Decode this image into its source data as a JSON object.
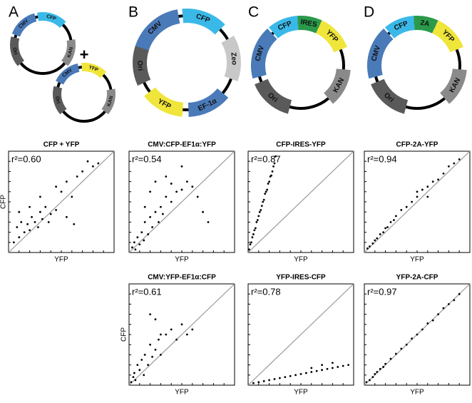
{
  "panels": [
    "A",
    "B",
    "C",
    "D"
  ],
  "plus": "+",
  "plasmids": [
    {
      "features": [
        "CMV",
        "CFP",
        "KAN",
        "Ori"
      ]
    },
    {
      "features": [
        "CMV",
        "YFP",
        "KAN",
        "Ori"
      ]
    },
    {
      "features": [
        "CMV",
        "CFP",
        "Zeo",
        "EF-1α",
        "YFP",
        "Ori"
      ]
    },
    {
      "features": [
        "CMV",
        "CFP",
        "IRES",
        "YFP",
        "KAN",
        "Ori"
      ]
    },
    {
      "features": [
        "CMV",
        "CFP",
        "2A",
        "YFP",
        "KAN",
        "Ori"
      ]
    }
  ],
  "chart_data": [
    {
      "type": "scatter",
      "title": "CFP + YFP",
      "annotation": "r²=0.60",
      "x_label": "YFP",
      "y_label": "CFP",
      "color": "#000000",
      "xlim": [
        0,
        100
      ],
      "ylim": [
        0,
        100
      ],
      "x": [
        5,
        8,
        10,
        12,
        15,
        18,
        20,
        22,
        25,
        28,
        30,
        32,
        35,
        38,
        40,
        45,
        50,
        55,
        60,
        65,
        70,
        75,
        80,
        85,
        45,
        30,
        20,
        55,
        62,
        10
      ],
      "y": [
        10,
        25,
        15,
        30,
        20,
        28,
        22,
        35,
        30,
        25,
        40,
        33,
        45,
        30,
        38,
        42,
        60,
        70,
        55,
        75,
        80,
        90,
        85,
        88,
        65,
        55,
        45,
        35,
        28,
        40
      ]
    },
    {
      "type": "scatter",
      "title": "CMV:CFP-EF1α:YFP",
      "annotation": "r²=0.54",
      "x_label": "YFP",
      "color": "#000000",
      "xlim": [
        0,
        100
      ],
      "ylim": [
        0,
        100
      ],
      "x": [
        3,
        5,
        6,
        8,
        10,
        12,
        14,
        15,
        18,
        20,
        22,
        25,
        28,
        30,
        32,
        35,
        40,
        45,
        50,
        55,
        60,
        65,
        70,
        75,
        15,
        20,
        25,
        35,
        40,
        50
      ],
      "y": [
        5,
        10,
        3,
        15,
        8,
        20,
        12,
        30,
        18,
        35,
        25,
        40,
        30,
        45,
        38,
        55,
        50,
        60,
        62,
        70,
        65,
        55,
        40,
        30,
        45,
        60,
        70,
        75,
        68,
        85
      ]
    },
    {
      "type": "scatter",
      "title": "CFP-IRES-YFP",
      "annotation": "r²=0.87",
      "x_label": "YFP",
      "color": "#000000",
      "xlim": [
        0,
        100
      ],
      "ylim": [
        0,
        100
      ],
      "x": [
        1,
        2,
        3,
        4,
        5,
        6,
        7,
        8,
        9,
        10,
        11,
        12,
        13,
        14,
        15,
        16,
        17,
        18,
        19,
        20,
        21,
        22,
        23,
        24,
        25,
        26
      ],
      "y": [
        3,
        8,
        10,
        15,
        18,
        22,
        24,
        30,
        32,
        36,
        40,
        42,
        46,
        50,
        52,
        58,
        60,
        62,
        68,
        70,
        75,
        76,
        80,
        85,
        88,
        95
      ]
    },
    {
      "type": "scatter",
      "title": "CFP-2A-YFP",
      "annotation": "r²=0.94",
      "x_label": "YFP",
      "color": "#000000",
      "xlim": [
        0,
        100
      ],
      "ylim": [
        0,
        100
      ],
      "x": [
        3,
        5,
        8,
        10,
        12,
        15,
        18,
        20,
        22,
        25,
        28,
        30,
        35,
        40,
        45,
        50,
        55,
        60,
        65,
        70,
        75,
        80,
        85,
        90,
        50,
        60
      ],
      "y": [
        4,
        6,
        9,
        12,
        14,
        18,
        20,
        24,
        25,
        30,
        32,
        36,
        42,
        45,
        50,
        55,
        62,
        65,
        70,
        72,
        78,
        85,
        88,
        92,
        60,
        55
      ]
    },
    {
      "type": "scatter",
      "title": "CMV:YFP-EF1α:CFP",
      "annotation": "r²=0.61",
      "x_label": "YFP",
      "y_label": "CFP",
      "color": "#000000",
      "xlim": [
        0,
        100
      ],
      "ylim": [
        0,
        100
      ],
      "x": [
        2,
        4,
        5,
        6,
        8,
        10,
        12,
        14,
        15,
        18,
        20,
        22,
        25,
        28,
        30,
        35,
        40,
        45,
        50,
        55,
        60,
        20,
        25,
        30
      ],
      "y": [
        3,
        8,
        12,
        5,
        20,
        15,
        25,
        10,
        30,
        20,
        40,
        28,
        35,
        45,
        30,
        50,
        55,
        45,
        60,
        50,
        55,
        70,
        65,
        50
      ]
    },
    {
      "type": "scatter",
      "title": "YFP-IRES-CFP",
      "annotation": "r²=0.78",
      "x_label": "YFP",
      "color": "#000000",
      "xlim": [
        0,
        100
      ],
      "ylim": [
        0,
        100
      ],
      "x": [
        5,
        10,
        15,
        20,
        25,
        30,
        35,
        40,
        45,
        50,
        55,
        60,
        65,
        70,
        75,
        80,
        85,
        90,
        95,
        60,
        70,
        80
      ],
      "y": [
        2,
        3,
        4,
        5,
        6,
        7,
        8,
        9,
        10,
        11,
        12,
        13,
        14,
        15,
        16,
        17,
        18,
        19,
        20,
        17,
        20,
        22
      ]
    },
    {
      "type": "scatter",
      "title": "YFP-2A-CFP",
      "annotation": "r²=0.97",
      "x_label": "YFP",
      "color": "#000000",
      "xlim": [
        0,
        100
      ],
      "ylim": [
        0,
        100
      ],
      "x": [
        2,
        5,
        8,
        10,
        12,
        15,
        18,
        20,
        25,
        30,
        35,
        40,
        45,
        50,
        55,
        60,
        65,
        70,
        75,
        80,
        85,
        90
      ],
      "y": [
        3,
        5,
        8,
        11,
        13,
        16,
        18,
        21,
        26,
        31,
        36,
        40,
        46,
        50,
        55,
        61,
        64,
        70,
        76,
        80,
        84,
        90
      ]
    }
  ]
}
